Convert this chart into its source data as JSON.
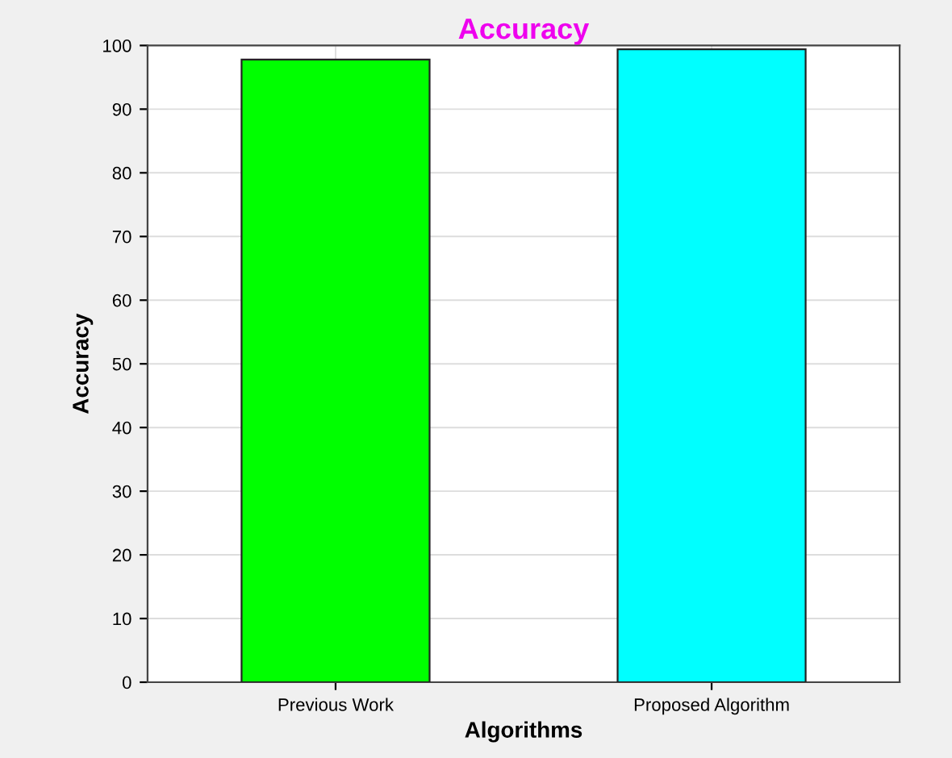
{
  "chart_data": {
    "type": "bar",
    "title": "Accuracy",
    "xlabel": "Algorithms",
    "ylabel": "Accuracy",
    "categories": [
      "Previous Work",
      "Proposed Algorithm"
    ],
    "values": [
      97.8,
      99.4
    ],
    "colors": [
      "#00ff00",
      "#00ffff"
    ],
    "ylim": [
      0,
      100
    ],
    "yticks": [
      0,
      10,
      20,
      30,
      40,
      50,
      60,
      70,
      80,
      90,
      100
    ],
    "grid": true
  }
}
